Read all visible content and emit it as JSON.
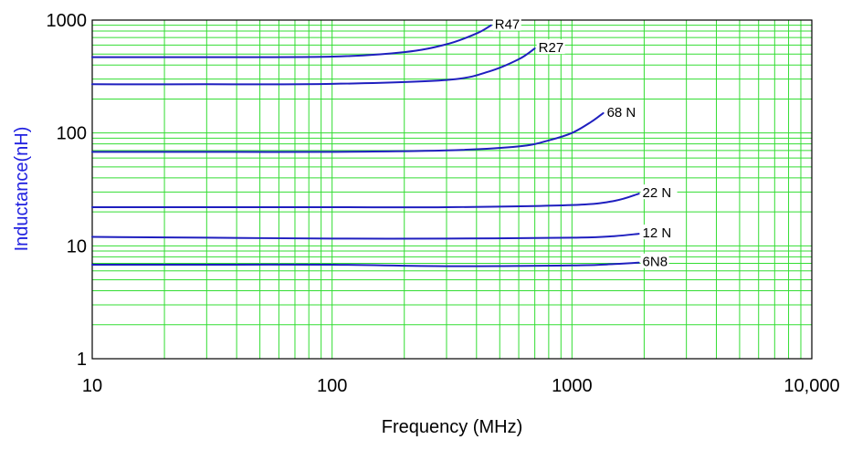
{
  "chart_data": {
    "type": "line",
    "title": "",
    "xlabel": "Frequency (MHz)",
    "ylabel": "Inductance(nH)",
    "xscale": "log",
    "yscale": "log",
    "xlim": [
      10,
      10000
    ],
    "ylim": [
      1,
      1000
    ],
    "xticks": [
      10,
      100,
      1000,
      10000
    ],
    "xtick_labels": [
      "10",
      "100",
      "1000",
      "10,000"
    ],
    "yticks": [
      1,
      10,
      100,
      1000
    ],
    "ytick_labels": [
      "1",
      "10",
      "100",
      "1000"
    ],
    "grid": true,
    "legend": "none; series are labeled at line ends",
    "colors": {
      "grid": "#33dd33",
      "series": "#1f1fbf",
      "ylabel": "#2020e0",
      "frame": "#000000"
    },
    "series": [
      {
        "name": "R47",
        "x": [
          10,
          30,
          100,
          200,
          300,
          400,
          460
        ],
        "y": [
          470,
          470,
          475,
          520,
          610,
          760,
          900
        ]
      },
      {
        "name": "R27",
        "x": [
          10,
          30,
          100,
          300,
          450,
          600,
          700
        ],
        "y": [
          270,
          270,
          272,
          295,
          350,
          450,
          560
        ]
      },
      {
        "name": "68 N",
        "x": [
          10,
          30,
          100,
          300,
          600,
          800,
          1000,
          1200,
          1350
        ],
        "y": [
          68,
          68,
          68,
          70,
          76,
          86,
          100,
          125,
          150
        ]
      },
      {
        "name": "22 N",
        "x": [
          10,
          30,
          100,
          300,
          1000,
          1500,
          1900
        ],
        "y": [
          22,
          22,
          22,
          22,
          23,
          25,
          29
        ]
      },
      {
        "name": "12 N",
        "x": [
          10,
          30,
          100,
          300,
          1000,
          1500,
          1900
        ],
        "y": [
          12,
          11.8,
          11.6,
          11.6,
          11.8,
          12.2,
          12.8
        ]
      },
      {
        "name": "6N8",
        "x": [
          10,
          30,
          100,
          300,
          1000,
          1500,
          1900
        ],
        "y": [
          6.8,
          6.8,
          6.8,
          6.6,
          6.7,
          6.9,
          7.1
        ]
      }
    ]
  }
}
